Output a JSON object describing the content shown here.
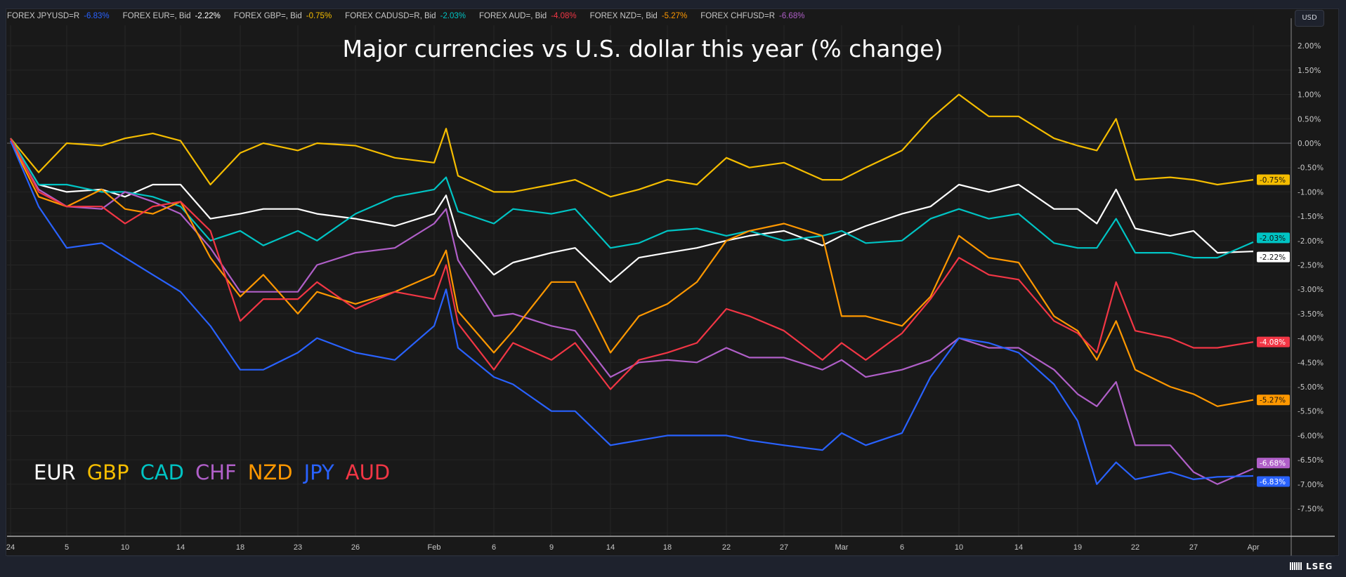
{
  "header": {
    "legend": [
      {
        "label": "FOREX JPYUSD=R",
        "value": "-6.83%",
        "color": "#2962ff"
      },
      {
        "label": "FOREX EUR=, Bid",
        "value": "-2.22%",
        "color": "#ffffff"
      },
      {
        "label": "FOREX GBP=, Bid",
        "value": "-0.75%",
        "color": "#f5bd00"
      },
      {
        "label": "FOREX CADUSD=R, Bid",
        "value": "-2.03%",
        "color": "#00c4c4"
      },
      {
        "label": "FOREX AUD=, Bid",
        "value": "-4.08%",
        "color": "#f23645"
      },
      {
        "label": "FOREX NZD=, Bid",
        "value": "-5.27%",
        "color": "#ff9800"
      },
      {
        "label": "FOREX CHFUSD=R",
        "value": "-6.68%",
        "color": "#b05fc8"
      }
    ],
    "currency_button": "USD"
  },
  "logo": "LSEG",
  "chart_data": {
    "type": "line",
    "title": "Major currencies vs U.S. dollar this year (% change)",
    "xlabel": "",
    "ylabel": "",
    "ylim": [
      -8.0,
      2.5
    ],
    "y_ticks": [
      "2.00%",
      "1.50%",
      "1.00%",
      "0.50%",
      "0.00%",
      "-0.50%",
      "-1.00%",
      "-1.50%",
      "-2.00%",
      "-2.50%",
      "-3.00%",
      "-3.50%",
      "-4.00%",
      "-4.50%",
      "-5.00%",
      "-5.50%",
      "-6.00%",
      "-6.50%",
      "-7.00%",
      "-7.50%"
    ],
    "y_tick_values": [
      2.0,
      1.5,
      1.0,
      0.5,
      0.0,
      -0.5,
      -1.0,
      -1.5,
      -2.0,
      -2.5,
      -3.0,
      -3.5,
      -4.0,
      -4.5,
      -5.0,
      -5.5,
      -6.0,
      -6.5,
      -7.0,
      -7.5
    ],
    "x_ticks": [
      {
        "label": "24",
        "date": "2024-01-01"
      },
      {
        "label": "5",
        "date": "2024-01-05"
      },
      {
        "label": "10",
        "date": "2024-01-10"
      },
      {
        "label": "14",
        "date": "2024-01-14"
      },
      {
        "label": "18",
        "date": "2024-01-18"
      },
      {
        "label": "23",
        "date": "2024-01-23"
      },
      {
        "label": "26",
        "date": "2024-01-26"
      },
      {
        "label": "Feb",
        "date": "2024-02-01"
      },
      {
        "label": "6",
        "date": "2024-02-06"
      },
      {
        "label": "9",
        "date": "2024-02-09"
      },
      {
        "label": "14",
        "date": "2024-02-14"
      },
      {
        "label": "18",
        "date": "2024-02-18"
      },
      {
        "label": "22",
        "date": "2024-02-22"
      },
      {
        "label": "27",
        "date": "2024-02-27"
      },
      {
        "label": "Mar",
        "date": "2024-03-01"
      },
      {
        "label": "6",
        "date": "2024-03-06"
      },
      {
        "label": "10",
        "date": "2024-03-10"
      },
      {
        "label": "14",
        "date": "2024-03-14"
      },
      {
        "label": "19",
        "date": "2024-03-19"
      },
      {
        "label": "22",
        "date": "2024-03-22"
      },
      {
        "label": "27",
        "date": "2024-03-27"
      },
      {
        "label": "Apr",
        "date": "2024-04-01"
      }
    ],
    "grid": true,
    "legend_placement": "bottom-left",
    "x": [
      "2024-01-01",
      "2024-01-03",
      "2024-01-05",
      "2024-01-08",
      "2024-01-10",
      "2024-01-12",
      "2024-01-14",
      "2024-01-16",
      "2024-01-18",
      "2024-01-20",
      "2024-01-23",
      "2024-01-24",
      "2024-01-26",
      "2024-01-29",
      "2024-02-01",
      "2024-02-02",
      "2024-02-03",
      "2024-02-06",
      "2024-02-07",
      "2024-02-09",
      "2024-02-11",
      "2024-02-14",
      "2024-02-16",
      "2024-02-18",
      "2024-02-20",
      "2024-02-22",
      "2024-02-24",
      "2024-02-27",
      "2024-02-29",
      "2024-03-01",
      "2024-03-03",
      "2024-03-06",
      "2024-03-08",
      "2024-03-10",
      "2024-03-12",
      "2024-03-14",
      "2024-03-17",
      "2024-03-19",
      "2024-03-20",
      "2024-03-21",
      "2024-03-22",
      "2024-03-25",
      "2024-03-27",
      "2024-03-29",
      "2024-04-01"
    ],
    "series": [
      {
        "name": "EUR",
        "color": "#ffffff",
        "last_label": "-2.22%",
        "label_text": "#131313",
        "values": [
          0.1,
          -0.85,
          -1.0,
          -0.95,
          -1.1,
          -0.85,
          -0.85,
          -1.55,
          -1.45,
          -1.35,
          -1.35,
          -1.45,
          -1.55,
          -1.7,
          -1.45,
          -1.07,
          -1.9,
          -2.7,
          -2.45,
          -2.25,
          -2.15,
          -2.85,
          -2.35,
          -2.25,
          -2.15,
          -2.0,
          -1.9,
          -1.8,
          -2.1,
          -1.9,
          -1.7,
          -1.45,
          -1.3,
          -0.85,
          -1.0,
          -0.85,
          -1.35,
          -1.35,
          -1.65,
          -0.95,
          -1.75,
          -1.9,
          -1.8,
          -2.25,
          -2.22
        ]
      },
      {
        "name": "GBP",
        "color": "#f5bd00",
        "last_label": "-0.75%",
        "label_text": "#131313",
        "values": [
          0.1,
          -0.6,
          0.0,
          -0.05,
          0.1,
          0.2,
          0.05,
          -0.85,
          -0.2,
          0.0,
          -0.15,
          0.0,
          -0.05,
          -0.3,
          -0.4,
          0.3,
          -0.67,
          -1.0,
          -1.0,
          -0.85,
          -0.75,
          -1.1,
          -0.95,
          -0.75,
          -0.85,
          -0.3,
          -0.5,
          -0.4,
          -0.75,
          -0.75,
          -0.5,
          -0.15,
          0.5,
          1.0,
          0.55,
          0.55,
          0.1,
          -0.05,
          -0.15,
          0.5,
          -0.75,
          -0.7,
          -0.75,
          -0.85,
          -0.75
        ]
      },
      {
        "name": "CAD",
        "color": "#00c4c4",
        "last_label": "-2.03%",
        "label_text": "#131313",
        "values": [
          0.1,
          -0.85,
          -0.85,
          -1.0,
          -1.0,
          -1.1,
          -1.3,
          -2.0,
          -1.8,
          -2.1,
          -1.8,
          -2.0,
          -1.45,
          -1.1,
          -0.95,
          -0.7,
          -1.4,
          -1.65,
          -1.35,
          -1.45,
          -1.35,
          -2.15,
          -2.05,
          -1.8,
          -1.75,
          -1.9,
          -1.8,
          -2.0,
          -1.9,
          -1.8,
          -2.05,
          -2.0,
          -1.55,
          -1.35,
          -1.55,
          -1.45,
          -2.05,
          -2.15,
          -2.15,
          -1.55,
          -2.25,
          -2.25,
          -2.35,
          -2.35,
          -2.03
        ]
      },
      {
        "name": "CHF",
        "color": "#b05fc8",
        "last_label": "-6.68%",
        "label_text": "#ffffff",
        "values": [
          0.05,
          -0.95,
          -1.3,
          -1.35,
          -1.0,
          -1.2,
          -1.45,
          -2.15,
          -3.05,
          -3.05,
          -3.05,
          -2.5,
          -2.25,
          -2.15,
          -1.65,
          -1.35,
          -2.4,
          -3.55,
          -3.5,
          -3.75,
          -3.85,
          -4.8,
          -4.5,
          -4.45,
          -4.5,
          -4.2,
          -4.4,
          -4.4,
          -4.65,
          -4.45,
          -4.8,
          -4.65,
          -4.45,
          -4.0,
          -4.2,
          -4.2,
          -4.65,
          -5.15,
          -5.4,
          -4.9,
          -6.2,
          -6.2,
          -6.75,
          -7.0,
          -6.68
        ]
      },
      {
        "name": "NZD",
        "color": "#ff9800",
        "last_label": "-5.27%",
        "label_text": "#131313",
        "values": [
          0.05,
          -1.1,
          -1.3,
          -0.95,
          -1.35,
          -1.45,
          -1.2,
          -2.35,
          -3.15,
          -2.7,
          -3.5,
          -3.05,
          -3.3,
          -3.05,
          -2.7,
          -2.2,
          -3.45,
          -4.3,
          -3.85,
          -2.85,
          -2.85,
          -4.3,
          -3.55,
          -3.3,
          -2.85,
          -2.0,
          -1.8,
          -1.65,
          -1.9,
          -3.55,
          -3.55,
          -3.75,
          -3.15,
          -1.9,
          -2.35,
          -2.45,
          -3.55,
          -3.85,
          -4.45,
          -3.65,
          -4.65,
          -5.0,
          -5.15,
          -5.4,
          -5.27
        ]
      },
      {
        "name": "JPY",
        "color": "#2962ff",
        "last_label": "-6.83%",
        "label_text": "#ffffff",
        "values": [
          0.05,
          -1.3,
          -2.15,
          -2.05,
          -2.35,
          -2.7,
          -3.05,
          -3.75,
          -4.65,
          -4.65,
          -4.3,
          -4.0,
          -4.3,
          -4.45,
          -3.75,
          -3.0,
          -4.2,
          -4.8,
          -4.95,
          -5.5,
          -5.5,
          -6.2,
          -6.1,
          -6.0,
          -6.0,
          -6.0,
          -6.1,
          -6.2,
          -6.3,
          -5.95,
          -6.2,
          -5.95,
          -4.8,
          -4.0,
          -4.1,
          -4.3,
          -4.95,
          -5.7,
          -7.0,
          -6.55,
          -6.9,
          -6.75,
          -6.9,
          -6.85,
          -6.83
        ]
      },
      {
        "name": "AUD",
        "color": "#f23645",
        "last_label": "-4.08%",
        "label_text": "#ffffff",
        "values": [
          0.1,
          -1.0,
          -1.3,
          -1.3,
          -1.65,
          -1.3,
          -1.2,
          -1.8,
          -3.65,
          -3.2,
          -3.2,
          -2.85,
          -3.4,
          -3.05,
          -3.2,
          -2.5,
          -3.7,
          -4.65,
          -4.1,
          -4.45,
          -4.1,
          -5.05,
          -4.45,
          -4.3,
          -4.1,
          -3.4,
          -3.55,
          -3.85,
          -4.45,
          -4.1,
          -4.45,
          -3.9,
          -3.2,
          -2.35,
          -2.7,
          -2.8,
          -3.65,
          -3.9,
          -4.3,
          -2.85,
          -3.85,
          -4.0,
          -4.2,
          -4.2,
          -4.08
        ]
      }
    ]
  }
}
